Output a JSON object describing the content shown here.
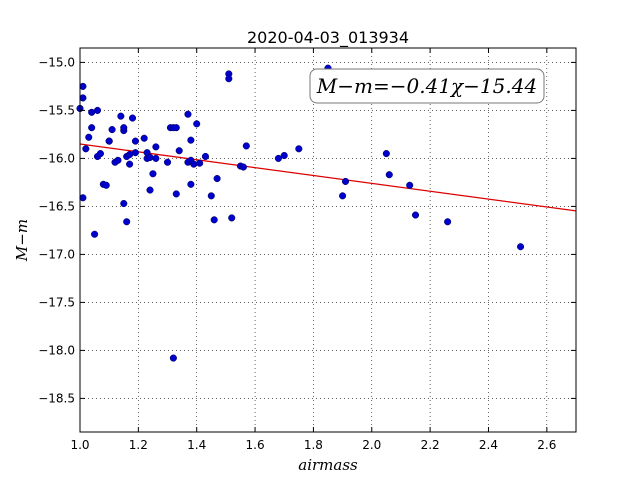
{
  "chart_data": {
    "type": "scatter",
    "title": "2020-04-03_013934",
    "xlabel": "airmass",
    "ylabel": "M−m",
    "xlim": [
      1.0,
      2.7
    ],
    "ylim": [
      -18.85,
      -14.85
    ],
    "y_inverted": true,
    "x_ticks": [
      1.0,
      1.2,
      1.4,
      1.6,
      1.8,
      2.0,
      2.2,
      2.4,
      2.6
    ],
    "x_tick_labels": [
      "1.0",
      "1.2",
      "1.4",
      "1.6",
      "1.8",
      "2.0",
      "2.2",
      "2.4",
      "2.6"
    ],
    "y_ticks": [
      -15.0,
      -15.5,
      -16.0,
      -16.5,
      -17.0,
      -17.5,
      -18.0,
      -18.5
    ],
    "y_tick_labels": [
      "−15.0",
      "−15.5",
      "−16.0",
      "−16.5",
      "−17.0",
      "−17.5",
      "−18.0",
      "−18.5"
    ],
    "grid": true,
    "annotation": "M−m=−0.41χ−15.44",
    "fit": {
      "slope": -0.41,
      "intercept": -15.44,
      "color": "#dd0000"
    },
    "point_color": "#0000cc",
    "points": [
      {
        "x": 1.0,
        "y": -15.48
      },
      {
        "x": 1.01,
        "y": -16.41
      },
      {
        "x": 1.01,
        "y": -15.25
      },
      {
        "x": 1.01,
        "y": -15.37
      },
      {
        "x": 1.02,
        "y": -15.9
      },
      {
        "x": 1.03,
        "y": -15.78
      },
      {
        "x": 1.04,
        "y": -15.68
      },
      {
        "x": 1.04,
        "y": -15.52
      },
      {
        "x": 1.05,
        "y": -16.79
      },
      {
        "x": 1.06,
        "y": -15.5
      },
      {
        "x": 1.06,
        "y": -15.98
      },
      {
        "x": 1.07,
        "y": -15.95
      },
      {
        "x": 1.08,
        "y": -16.27
      },
      {
        "x": 1.09,
        "y": -16.28
      },
      {
        "x": 1.1,
        "y": -15.82
      },
      {
        "x": 1.1,
        "y": -15.82
      },
      {
        "x": 1.11,
        "y": -15.7
      },
      {
        "x": 1.12,
        "y": -16.04
      },
      {
        "x": 1.13,
        "y": -16.02
      },
      {
        "x": 1.14,
        "y": -15.56
      },
      {
        "x": 1.15,
        "y": -15.71
      },
      {
        "x": 1.15,
        "y": -15.68
      },
      {
        "x": 1.15,
        "y": -16.47
      },
      {
        "x": 1.16,
        "y": -16.66
      },
      {
        "x": 1.16,
        "y": -15.98
      },
      {
        "x": 1.17,
        "y": -16.06
      },
      {
        "x": 1.17,
        "y": -15.96
      },
      {
        "x": 1.18,
        "y": -15.58
      },
      {
        "x": 1.19,
        "y": -15.82
      },
      {
        "x": 1.19,
        "y": -15.94
      },
      {
        "x": 1.22,
        "y": -15.79
      },
      {
        "x": 1.23,
        "y": -15.94
      },
      {
        "x": 1.23,
        "y": -16.0
      },
      {
        "x": 1.24,
        "y": -16.33
      },
      {
        "x": 1.24,
        "y": -15.99
      },
      {
        "x": 1.25,
        "y": -16.16
      },
      {
        "x": 1.26,
        "y": -15.88
      },
      {
        "x": 1.26,
        "y": -16.0
      },
      {
        "x": 1.3,
        "y": -16.04
      },
      {
        "x": 1.31,
        "y": -15.68
      },
      {
        "x": 1.32,
        "y": -15.68
      },
      {
        "x": 1.32,
        "y": -18.08
      },
      {
        "x": 1.33,
        "y": -15.68
      },
      {
        "x": 1.33,
        "y": -16.37
      },
      {
        "x": 1.34,
        "y": -15.92
      },
      {
        "x": 1.37,
        "y": -15.54
      },
      {
        "x": 1.37,
        "y": -16.04
      },
      {
        "x": 1.38,
        "y": -16.02
      },
      {
        "x": 1.38,
        "y": -16.27
      },
      {
        "x": 1.38,
        "y": -15.81
      },
      {
        "x": 1.39,
        "y": -16.06
      },
      {
        "x": 1.4,
        "y": -15.64
      },
      {
        "x": 1.41,
        "y": -16.05
      },
      {
        "x": 1.43,
        "y": -15.98
      },
      {
        "x": 1.45,
        "y": -16.39
      },
      {
        "x": 1.46,
        "y": -16.64
      },
      {
        "x": 1.47,
        "y": -16.21
      },
      {
        "x": 1.51,
        "y": -15.12
      },
      {
        "x": 1.51,
        "y": -15.17
      },
      {
        "x": 1.52,
        "y": -16.62
      },
      {
        "x": 1.55,
        "y": -16.08
      },
      {
        "x": 1.56,
        "y": -16.09
      },
      {
        "x": 1.57,
        "y": -15.87
      },
      {
        "x": 1.68,
        "y": -16.0
      },
      {
        "x": 1.7,
        "y": -15.97
      },
      {
        "x": 1.75,
        "y": -15.9
      },
      {
        "x": 1.85,
        "y": -15.06
      },
      {
        "x": 1.9,
        "y": -16.39
      },
      {
        "x": 1.91,
        "y": -16.24
      },
      {
        "x": 2.05,
        "y": -15.95
      },
      {
        "x": 2.06,
        "y": -16.17
      },
      {
        "x": 2.13,
        "y": -16.28
      },
      {
        "x": 2.15,
        "y": -16.59
      },
      {
        "x": 2.26,
        "y": -16.66
      },
      {
        "x": 2.51,
        "y": -16.92
      }
    ]
  }
}
